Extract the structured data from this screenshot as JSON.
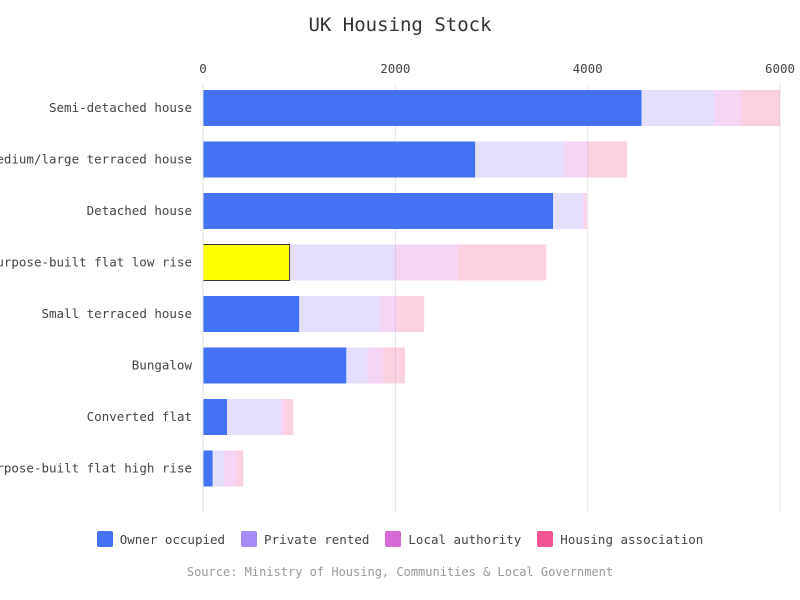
{
  "chart_data": {
    "type": "bar",
    "orientation": "horizontal",
    "stacked": true,
    "title": "UK Housing Stock",
    "source": "Source: Ministry of Housing, Communities & Local Government",
    "xlim": [
      0,
      6000
    ],
    "xticks": [
      0,
      2000,
      4000,
      6000
    ],
    "xaxis_position": "top",
    "grid": true,
    "legend_position": "bottom",
    "categories": [
      "Semi-detached house",
      "Medium/large terraced house",
      "Detached house",
      "Purpose-built flat low rise",
      "Small terraced house",
      "Bungalow",
      "Converted flat",
      "Purpose-built flat high rise"
    ],
    "series": [
      {
        "name": "Owner occupied",
        "color": "#4472f4",
        "values": [
          4560,
          2830,
          3640,
          900,
          1000,
          1490,
          250,
          100
        ]
      },
      {
        "name": "Private rented",
        "color": "#a68af7",
        "values": [
          760,
          930,
          310,
          1100,
          840,
          220,
          560,
          120
        ]
      },
      {
        "name": "Local authority",
        "color": "#d86ad8",
        "values": [
          280,
          240,
          20,
          650,
          180,
          160,
          30,
          130
        ]
      },
      {
        "name": "Housing association",
        "color": "#f25592",
        "values": [
          400,
          410,
          20,
          920,
          280,
          230,
          100,
          70
        ]
      }
    ],
    "highlight": {
      "category_index": 3,
      "series_index": 0,
      "color": "#ffff00",
      "stroke": "#333333"
    },
    "faded_opacity": 0.28
  }
}
